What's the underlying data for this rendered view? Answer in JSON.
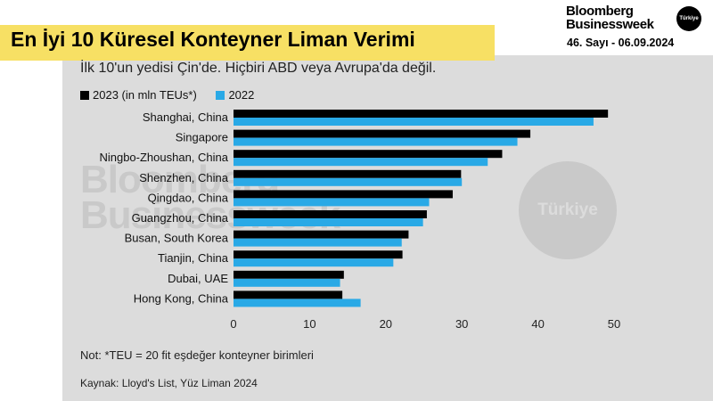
{
  "header": {
    "title": "En İyi 10 Küresel Konteyner Liman Verimi",
    "brand_line1": "Bloomberg",
    "brand_line2": "Businessweek",
    "brand_badge": "Türkiye",
    "issue": "46. Sayı - 06.09.2024"
  },
  "watermark": {
    "line1": "Bloomberg",
    "line2": "Businessweek",
    "badge": "Türkiye"
  },
  "footer": {
    "note": "Not: *TEU = 20 fit eşdeğer konteyner birimleri",
    "source": "Kaynak: Lloyd's List, Yüz Liman 2024"
  },
  "chart_data": {
    "type": "bar",
    "orientation": "horizontal",
    "subtitle": "İlk 10'un yedisi Çin'de. Hiçbiri ABD veya Avrupa'da değil.",
    "categories": [
      "Shanghai, China",
      "Singapore",
      "Ningbo-Zhoushan, China",
      "Shenzhen, China",
      "Qingdao, China",
      "Guangzhou, China",
      "Busan, South Korea",
      "Tianjin, China",
      "Dubai, UAE",
      "Hong Kong, China"
    ],
    "series": [
      {
        "name": "2023 (in mln TEUs*)",
        "color": "#000000",
        "values": [
          49.2,
          39.0,
          35.3,
          29.9,
          28.8,
          25.4,
          23.0,
          22.2,
          14.5,
          14.3
        ]
      },
      {
        "name": "2022",
        "color": "#29a9e6",
        "values": [
          47.3,
          37.3,
          33.4,
          30.0,
          25.7,
          24.9,
          22.1,
          21.0,
          14.0,
          16.7
        ]
      }
    ],
    "xlim": [
      0,
      50
    ],
    "xticks": [
      "0",
      "10",
      "20",
      "30",
      "40",
      "50"
    ],
    "grid": false,
    "legend_position": "top-left"
  }
}
